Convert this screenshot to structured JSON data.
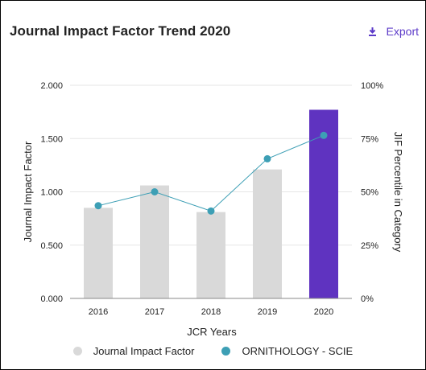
{
  "header": {
    "title": "Journal Impact Factor Trend 2020",
    "export_label": "Export",
    "export_icon": "download-icon"
  },
  "legend": {
    "items": [
      {
        "label": "Journal Impact Factor",
        "color": "#d9d9d9"
      },
      {
        "label": "ORNITHOLOGY - SCIE",
        "color": "#3d9fb5"
      }
    ]
  },
  "chart_data": {
    "type": "bar",
    "categories": [
      "2016",
      "2017",
      "2018",
      "2019",
      "2020"
    ],
    "xlabel": "JCR Years",
    "ylabel": "Journal Impact Factor",
    "y2label": "JIF Percentile in Category",
    "ylim": [
      0,
      2
    ],
    "yticks": [
      "0.000",
      "0.500",
      "1.000",
      "1.500",
      "2.000"
    ],
    "y2lim": [
      0,
      100
    ],
    "y2ticks": [
      "0%",
      "25%",
      "50%",
      "75%",
      "100%"
    ],
    "grid": true,
    "legend_position": "bottom",
    "series": [
      {
        "name": "Journal Impact Factor",
        "type": "bar",
        "values": [
          0.85,
          1.06,
          0.81,
          1.21,
          1.77
        ],
        "colors": [
          "#d9d9d9",
          "#d9d9d9",
          "#d9d9d9",
          "#d9d9d9",
          "#5f33c0"
        ]
      },
      {
        "name": "ORNITHOLOGY - SCIE",
        "type": "line",
        "axis": "right",
        "values": [
          43.5,
          50,
          41,
          65.5,
          76.5
        ],
        "color": "#3d9fb5"
      }
    ]
  }
}
